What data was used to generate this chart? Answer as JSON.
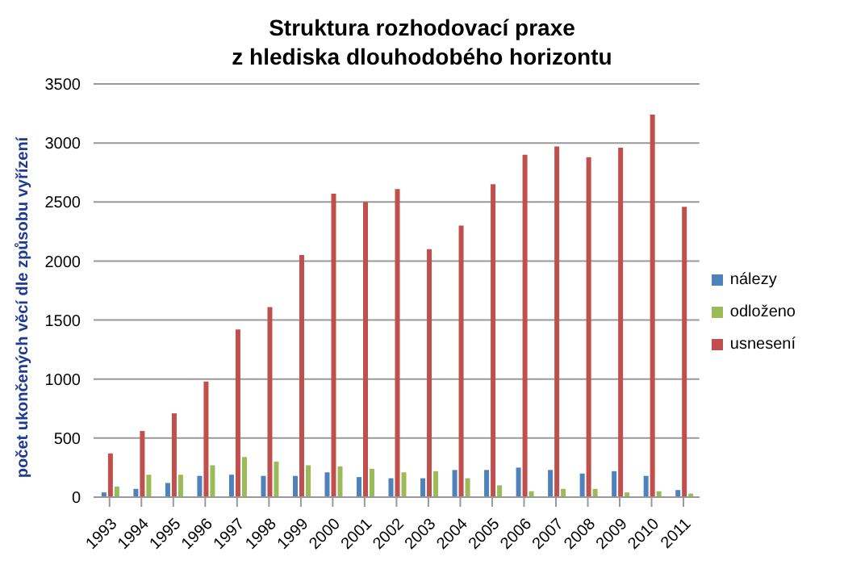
{
  "chart_data": {
    "type": "bar",
    "title": "Struktura rozhodovací praxe\nz hlediska dlouhodobého horizontu",
    "ylabel": "počet ukončených věcí dle způsobu vyřízení",
    "categories": [
      "1993",
      "1994",
      "1995",
      "1996",
      "1997",
      "1998",
      "1999",
      "2000",
      "2001",
      "2002",
      "2003",
      "2004",
      "2005",
      "2006",
      "2007",
      "2008",
      "2009",
      "2010",
      "2011"
    ],
    "series": [
      {
        "name": "nálezy",
        "color": "#4f81bd",
        "values": [
          40,
          70,
          120,
          180,
          190,
          180,
          180,
          210,
          170,
          160,
          160,
          230,
          230,
          250,
          230,
          200,
          220,
          180,
          60
        ]
      },
      {
        "name": "usnesení",
        "color": "#c0504d",
        "values": [
          370,
          560,
          710,
          980,
          1420,
          1610,
          2050,
          2570,
          2500,
          2610,
          2100,
          2300,
          2650,
          2900,
          2970,
          2880,
          2960,
          3240,
          2460
        ]
      },
      {
        "name": "odloženo",
        "color": "#9bbb59",
        "values": [
          90,
          190,
          190,
          270,
          340,
          300,
          270,
          260,
          240,
          210,
          220,
          160,
          100,
          50,
          70,
          70,
          40,
          50,
          30
        ]
      }
    ],
    "ylim": [
      0,
      3500
    ],
    "yticks": [
      0,
      500,
      1000,
      1500,
      2000,
      2500,
      3000,
      3500
    ],
    "grid": "y",
    "legend": "right"
  }
}
